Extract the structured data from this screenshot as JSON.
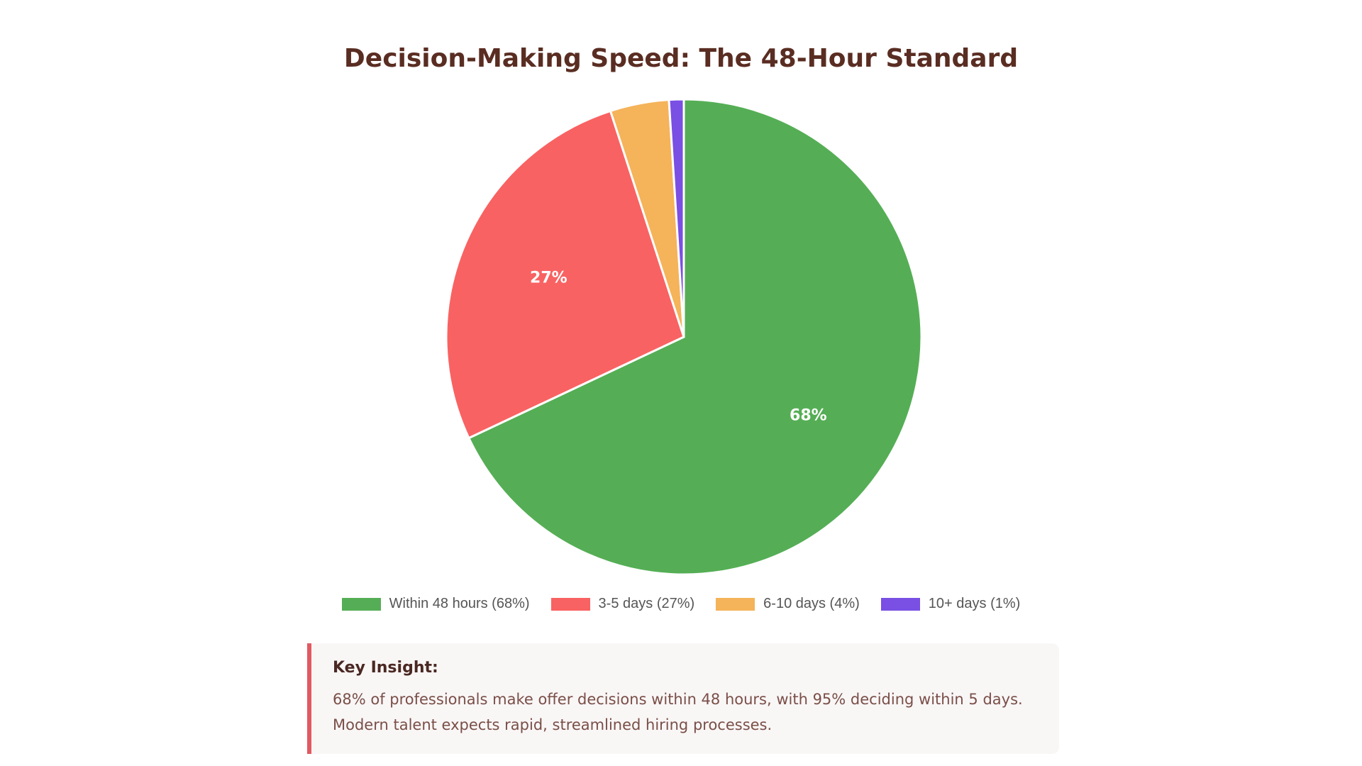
{
  "chart_data": {
    "type": "pie",
    "title": "Decision-Making Speed: The 48-Hour Standard",
    "categories": [
      "Within 48 hours (68%)",
      "3-5 days (27%)",
      "6-10 days (4%)",
      "10+ days (1%)"
    ],
    "values": [
      68,
      27,
      4,
      1
    ],
    "data_labels": [
      "68%",
      "27%",
      "",
      ""
    ],
    "colors": [
      "#55ae55",
      "#f96262",
      "#f5b35a",
      "#7a4fe3"
    ],
    "legend_position": "bottom"
  },
  "insight": {
    "heading": "Key Insight:",
    "line1": "68% of professionals make offer decisions within 48 hours, with 95% deciding within 5 days.",
    "line2": "Modern talent expects rapid, streamlined hiring processes."
  }
}
